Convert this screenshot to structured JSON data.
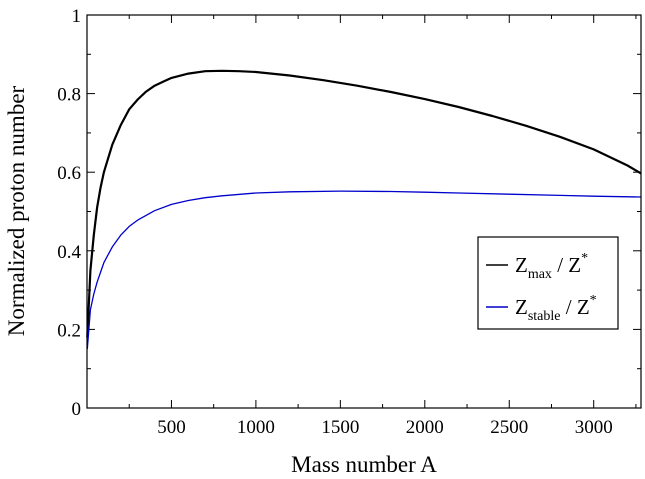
{
  "chart_data": {
    "type": "line",
    "xlabel": "Mass number A",
    "ylabel": "Normalized proton number",
    "xlim": [
      0,
      3280
    ],
    "ylim": [
      0,
      1
    ],
    "x_ticks": [
      500,
      1000,
      1500,
      2000,
      2500,
      3000
    ],
    "y_ticks": [
      0,
      0.2,
      0.4,
      0.6,
      0.8,
      1
    ],
    "y_tick_labels": [
      "0",
      "0.2",
      "0.4",
      "0.6",
      "0.8",
      "1"
    ],
    "grid": false,
    "legend_position": "right",
    "series": [
      {
        "name": "Z_max / Z^*",
        "label_main": "Z",
        "label_sub": "max",
        "label_rest": " / Z",
        "label_sup": "*",
        "color": "#000000",
        "x": [
          2,
          20,
          40,
          60,
          80,
          100,
          150,
          200,
          250,
          300,
          350,
          400,
          450,
          500,
          600,
          700,
          800,
          900,
          1000,
          1200,
          1400,
          1600,
          1800,
          2000,
          2200,
          2400,
          2600,
          2800,
          3000,
          3200,
          3280
        ],
        "y": [
          0.18,
          0.35,
          0.44,
          0.51,
          0.56,
          0.6,
          0.67,
          0.72,
          0.76,
          0.785,
          0.805,
          0.82,
          0.83,
          0.84,
          0.851,
          0.857,
          0.858,
          0.857,
          0.855,
          0.846,
          0.834,
          0.82,
          0.804,
          0.786,
          0.766,
          0.743,
          0.718,
          0.69,
          0.658,
          0.617,
          0.597
        ]
      },
      {
        "name": "Z_stable / Z^*",
        "label_main": "Z",
        "label_sub": "stable",
        "label_rest": " / Z",
        "label_sup": "*",
        "color": "#0000cc",
        "x": [
          2,
          20,
          40,
          60,
          80,
          100,
          150,
          200,
          250,
          300,
          400,
          500,
          600,
          700,
          800,
          1000,
          1200,
          1500,
          1800,
          2000,
          2200,
          2500,
          2800,
          3000,
          3280
        ],
        "y": [
          0.15,
          0.25,
          0.29,
          0.32,
          0.345,
          0.37,
          0.41,
          0.44,
          0.462,
          0.478,
          0.502,
          0.518,
          0.528,
          0.535,
          0.54,
          0.547,
          0.55,
          0.552,
          0.551,
          0.549,
          0.547,
          0.544,
          0.541,
          0.539,
          0.537
        ]
      }
    ]
  }
}
